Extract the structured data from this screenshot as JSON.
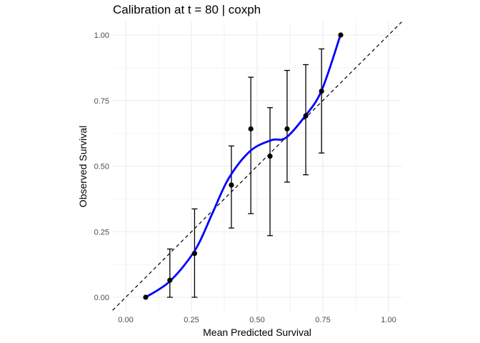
{
  "chart_data": {
    "type": "scatter",
    "title": "Calibration at t = 80 | coxph",
    "xlabel": "Mean Predicted Survival",
    "ylabel": "Observed Survival",
    "xlim": [
      -0.04,
      1.05
    ],
    "ylim": [
      -0.05,
      1.05
    ],
    "xticks": [
      "0.00",
      "0.25",
      "0.50",
      "0.75",
      "1.00"
    ],
    "yticks": [
      "0.00",
      "0.25",
      "0.50",
      "0.75",
      "1.00"
    ],
    "grid": true,
    "points": [
      {
        "x": 0.076,
        "y": 0.0,
        "lo": null,
        "hi": null
      },
      {
        "x": 0.168,
        "y": 0.065,
        "lo": 0.0,
        "hi": 0.184
      },
      {
        "x": 0.262,
        "y": 0.167,
        "lo": 0.0,
        "hi": 0.337
      },
      {
        "x": 0.402,
        "y": 0.428,
        "lo": 0.264,
        "hi": 0.577
      },
      {
        "x": 0.476,
        "y": 0.642,
        "lo": 0.319,
        "hi": 0.839
      },
      {
        "x": 0.549,
        "y": 0.538,
        "lo": 0.235,
        "hi": 0.723
      },
      {
        "x": 0.614,
        "y": 0.642,
        "lo": 0.439,
        "hi": 0.865
      },
      {
        "x": 0.685,
        "y": 0.692,
        "lo": 0.467,
        "hi": 0.887
      },
      {
        "x": 0.745,
        "y": 0.786,
        "lo": 0.55,
        "hi": 0.947
      },
      {
        "x": 0.818,
        "y": 1.0,
        "lo": null,
        "hi": null
      }
    ],
    "smooth_curve": {
      "color": "#0000ff",
      "x": [
        0.076,
        0.169,
        0.264,
        0.328,
        0.391,
        0.473,
        0.554,
        0.609,
        0.681,
        0.745,
        0.817
      ],
      "y": [
        0.0,
        0.062,
        0.18,
        0.316,
        0.452,
        0.557,
        0.599,
        0.608,
        0.689,
        0.788,
        1.0
      ]
    },
    "reference_line": {
      "slope": 1,
      "intercept": 0,
      "style": "dashed",
      "color": "#000000"
    }
  }
}
